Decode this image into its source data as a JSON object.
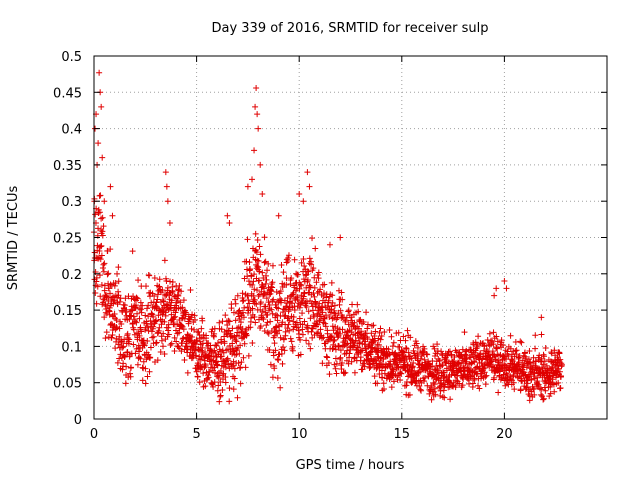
{
  "colors": {
    "series": "#e00000",
    "axes": "#000000",
    "grid": "#a0a0a0",
    "background": "#ffffff"
  },
  "chart_data": {
    "type": "scatter",
    "title": "Day 339 of 2016, SRMTID for receiver sulp",
    "xlabel": "GPS time / hours",
    "ylabel": "SRMTID / TECUs",
    "xlim": [
      0,
      25
    ],
    "ylim": [
      0,
      0.5
    ],
    "xticks": [
      0,
      5,
      10,
      15,
      20
    ],
    "xtick_labels": [
      "0",
      "5",
      "10",
      "15",
      "20"
    ],
    "yticks": [
      0,
      0.05,
      0.1,
      0.15,
      0.2,
      0.25,
      0.3,
      0.35,
      0.4,
      0.45,
      0.5
    ],
    "ytick_labels": [
      "0",
      "0.05",
      "0.1",
      "0.15",
      "0.2",
      "0.25",
      "0.3",
      "0.35",
      "0.4",
      "0.45",
      "0.5"
    ],
    "grid": true,
    "marker": "+",
    "series": [
      {
        "name": "SRMTID",
        "trend": [
          [
            0.0,
            0.2
          ],
          [
            0.25,
            0.24
          ],
          [
            0.5,
            0.19
          ],
          [
            1.0,
            0.14
          ],
          [
            1.5,
            0.11
          ],
          [
            2.0,
            0.13
          ],
          [
            2.5,
            0.12
          ],
          [
            3.0,
            0.14
          ],
          [
            3.5,
            0.15
          ],
          [
            4.0,
            0.14
          ],
          [
            4.5,
            0.12
          ],
          [
            5.0,
            0.09
          ],
          [
            6.0,
            0.08
          ],
          [
            6.5,
            0.09
          ],
          [
            7.0,
            0.11
          ],
          [
            7.5,
            0.17
          ],
          [
            8.0,
            0.19
          ],
          [
            8.5,
            0.14
          ],
          [
            9.0,
            0.13
          ],
          [
            9.5,
            0.16
          ],
          [
            10.0,
            0.15
          ],
          [
            10.5,
            0.17
          ],
          [
            11.0,
            0.15
          ],
          [
            11.5,
            0.13
          ],
          [
            12.0,
            0.11
          ],
          [
            13.0,
            0.11
          ],
          [
            14.0,
            0.08
          ],
          [
            15.0,
            0.075
          ],
          [
            16.0,
            0.07
          ],
          [
            17.0,
            0.065
          ],
          [
            18.0,
            0.07
          ],
          [
            19.0,
            0.08
          ],
          [
            20.0,
            0.08
          ],
          [
            21.0,
            0.065
          ],
          [
            22.0,
            0.06
          ],
          [
            22.8,
            0.07
          ]
        ],
        "spread": [
          [
            0.0,
            0.08
          ],
          [
            0.5,
            0.07
          ],
          [
            1.0,
            0.05
          ],
          [
            3.0,
            0.05
          ],
          [
            5.0,
            0.035
          ],
          [
            7.0,
            0.05
          ],
          [
            8.0,
            0.07
          ],
          [
            10.0,
            0.06
          ],
          [
            12.0,
            0.04
          ],
          [
            14.0,
            0.03
          ],
          [
            22.8,
            0.025
          ]
        ],
        "peaks": [
          [
            0.05,
            0.4
          ],
          [
            0.1,
            0.42
          ],
          [
            0.15,
            0.35
          ],
          [
            0.2,
            0.38
          ],
          [
            0.25,
            0.477
          ],
          [
            0.3,
            0.45
          ],
          [
            0.35,
            0.43
          ],
          [
            0.4,
            0.36
          ],
          [
            0.5,
            0.3
          ],
          [
            0.8,
            0.32
          ],
          [
            0.9,
            0.28
          ],
          [
            3.5,
            0.34
          ],
          [
            3.55,
            0.32
          ],
          [
            3.6,
            0.3
          ],
          [
            3.7,
            0.27
          ],
          [
            6.5,
            0.28
          ],
          [
            6.6,
            0.27
          ],
          [
            7.5,
            0.32
          ],
          [
            7.7,
            0.33
          ],
          [
            7.8,
            0.37
          ],
          [
            7.85,
            0.43
          ],
          [
            7.9,
            0.456
          ],
          [
            7.95,
            0.42
          ],
          [
            8.0,
            0.4
          ],
          [
            8.1,
            0.35
          ],
          [
            8.2,
            0.31
          ],
          [
            9.0,
            0.28
          ],
          [
            10.0,
            0.31
          ],
          [
            10.2,
            0.3
          ],
          [
            10.4,
            0.34
          ],
          [
            10.5,
            0.32
          ],
          [
            11.5,
            0.24
          ],
          [
            12.0,
            0.25
          ],
          [
            19.5,
            0.17
          ],
          [
            19.6,
            0.18
          ],
          [
            20.0,
            0.19
          ],
          [
            20.1,
            0.18
          ],
          [
            21.8,
            0.14
          ],
          [
            0.02,
            0.3
          ]
        ],
        "point_count": 2400,
        "x_range": [
          0,
          22.8
        ]
      }
    ]
  }
}
